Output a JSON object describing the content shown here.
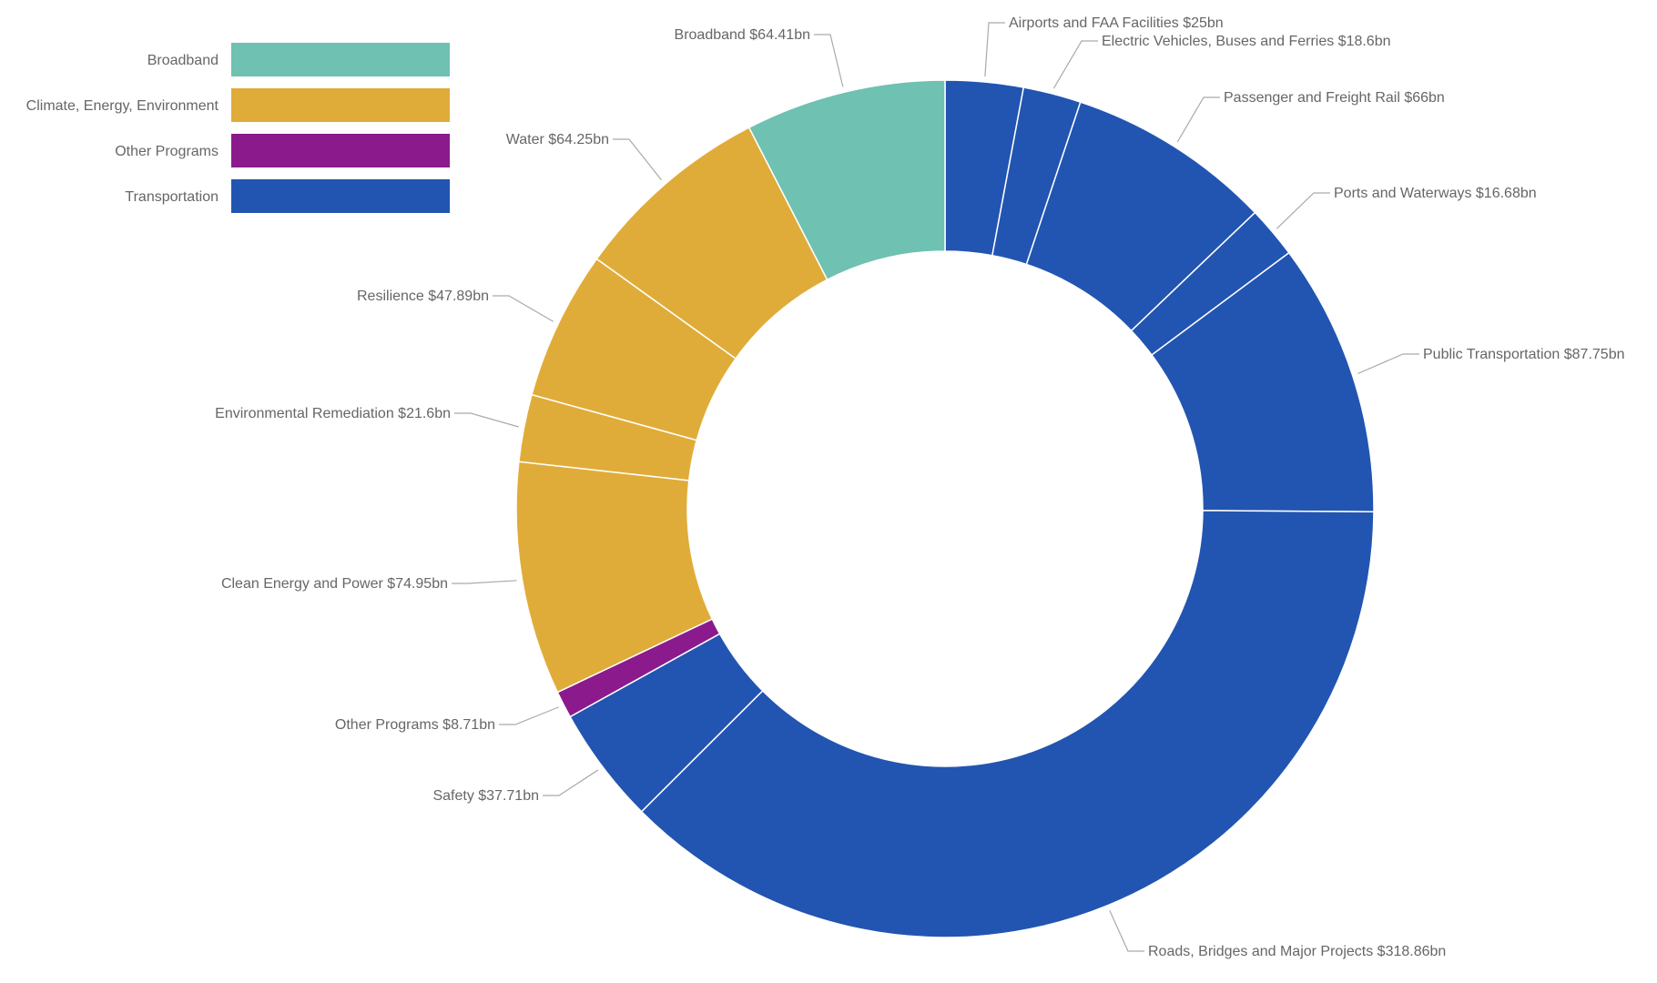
{
  "chart_data": {
    "type": "pie",
    "variant": "donut",
    "unit_prefix": "$",
    "unit_suffix": "bn",
    "legend": {
      "placement": "top-left",
      "entries": [
        {
          "name": "Broadband",
          "color": "#6fc1b1"
        },
        {
          "name": "Climate, Energy, Environment",
          "color": "#e0ac39"
        },
        {
          "name": "Other Programs",
          "color": "#8b1a8c"
        },
        {
          "name": "Transportation",
          "color": "#2255b1"
        }
      ]
    },
    "slices": [
      {
        "label": "Airports and FAA Facilities",
        "value": 25,
        "group": "Transportation",
        "text": "Airports and FAA Facilities $25bn"
      },
      {
        "label": "Electric Vehicles, Buses and Ferries",
        "value": 18.6,
        "group": "Transportation",
        "text": "Electric Vehicles, Buses and Ferries $18.6bn"
      },
      {
        "label": "Passenger and Freight Rail",
        "value": 66,
        "group": "Transportation",
        "text": "Passenger and Freight Rail $66bn"
      },
      {
        "label": "Ports and Waterways",
        "value": 16.68,
        "group": "Transportation",
        "text": "Ports and Waterways $16.68bn"
      },
      {
        "label": "Public Transportation",
        "value": 87.75,
        "group": "Transportation",
        "text": "Public Transportation $87.75bn"
      },
      {
        "label": "Roads, Bridges and Major Projects",
        "value": 318.86,
        "group": "Transportation",
        "text": "Roads, Bridges and Major Projects $318.86bn"
      },
      {
        "label": "Safety",
        "value": 37.71,
        "group": "Transportation",
        "text": "Safety $37.71bn"
      },
      {
        "label": "Other Programs",
        "value": 8.71,
        "group": "Other Programs",
        "text": "Other Programs $8.71bn"
      },
      {
        "label": "Clean Energy and Power",
        "value": 74.95,
        "group": "Climate, Energy, Environment",
        "text": "Clean Energy and Power $74.95bn"
      },
      {
        "label": "Environmental Remediation",
        "value": 21.6,
        "group": "Climate, Energy, Environment",
        "text": "Environmental Remediation $21.6bn"
      },
      {
        "label": "Resilience",
        "value": 47.89,
        "group": "Climate, Energy, Environment",
        "text": "Resilience $47.89bn"
      },
      {
        "label": "Water",
        "value": 64.25,
        "group": "Climate, Energy, Environment",
        "text": "Water $64.25bn"
      },
      {
        "label": "Broadband",
        "value": 64.41,
        "group": "Broadband",
        "text": "Broadband $64.41bn"
      }
    ]
  }
}
